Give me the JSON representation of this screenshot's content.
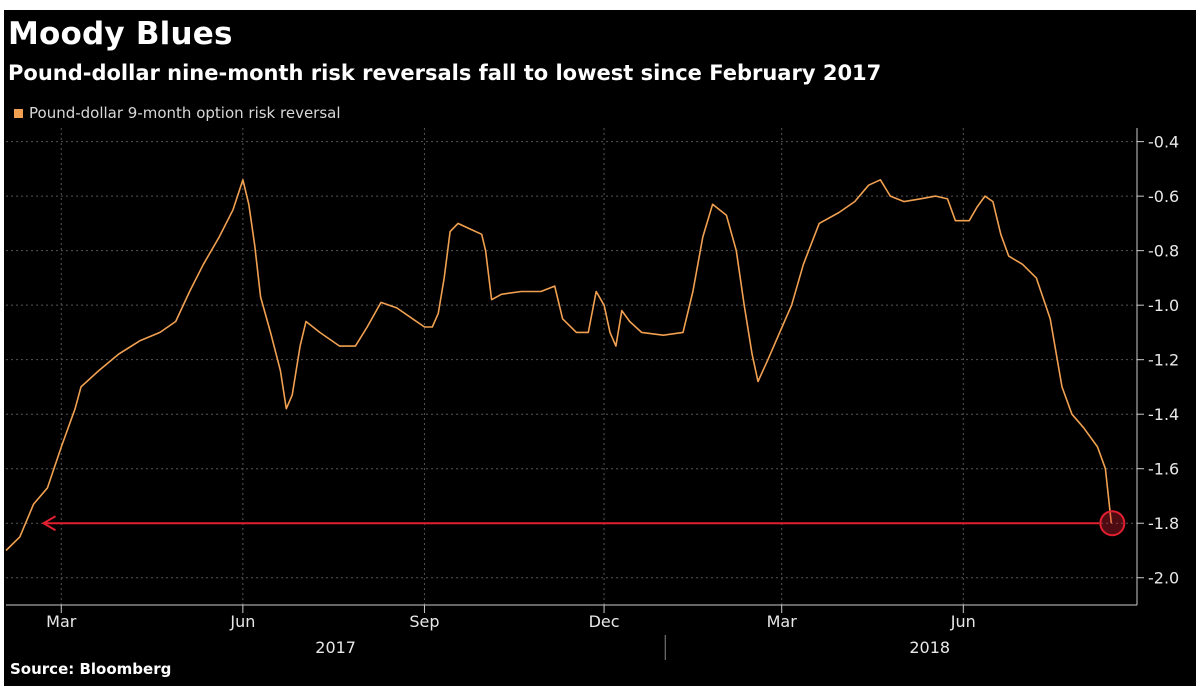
{
  "header": {
    "title": "Moody Blues",
    "subtitle": "Pound-dollar nine-month risk reversals fall to lowest since February 2017"
  },
  "footer": {
    "source": "Source: Bloomberg"
  },
  "colors": {
    "background": "#000000",
    "series": "#f0a050",
    "annotation": "#e02030",
    "grid": "#555555",
    "text": "#e8e8e8"
  },
  "chart_data": {
    "type": "line",
    "title": "Moody Blues",
    "subtitle": "Pound-dollar nine-month risk reversals fall to lowest since February 2017",
    "legend_position": "top-left",
    "grid": true,
    "y_axis_side": "right",
    "ylim": [
      -2.1,
      -0.35
    ],
    "y_ticks": [
      -0.4,
      -0.6,
      -0.8,
      -1.0,
      -1.2,
      -1.4,
      -1.6,
      -1.8,
      -2.0
    ],
    "y_tick_labels": [
      "-0.4",
      "-0.6",
      "-0.8",
      "-1.0",
      "-1.2",
      "-1.4",
      "-1.6",
      "-1.8",
      "-2.0"
    ],
    "x_range": [
      "2017-02-01",
      "2018-08-28"
    ],
    "x_ticks": [
      {
        "date": "2017-03-01",
        "label": "Mar"
      },
      {
        "date": "2017-06-01",
        "label": "Jun"
      },
      {
        "date": "2017-09-01",
        "label": "Sep"
      },
      {
        "date": "2017-12-01",
        "label": "Dec"
      },
      {
        "date": "2018-03-01",
        "label": "Mar"
      },
      {
        "date": "2018-06-01",
        "label": "Jun"
      }
    ],
    "year_labels": [
      {
        "label": "2017",
        "center": "2017-07-18"
      },
      {
        "label": "2018",
        "center": "2018-05-15"
      }
    ],
    "year_divider": "2018-01-01",
    "series": [
      {
        "name": "Pound-dollar 9-month option risk reversal",
        "color": "#f0a050",
        "points": [
          [
            "2017-02-01",
            -1.9
          ],
          [
            "2017-02-08",
            -1.85
          ],
          [
            "2017-02-15",
            -1.73
          ],
          [
            "2017-02-22",
            -1.67
          ],
          [
            "2017-03-01",
            -1.52
          ],
          [
            "2017-03-08",
            -1.38
          ],
          [
            "2017-03-11",
            -1.3
          ],
          [
            "2017-03-20",
            -1.24
          ],
          [
            "2017-03-30",
            -1.18
          ],
          [
            "2017-04-10",
            -1.13
          ],
          [
            "2017-04-20",
            -1.1
          ],
          [
            "2017-04-28",
            -1.06
          ],
          [
            "2017-05-05",
            -0.95
          ],
          [
            "2017-05-12",
            -0.85
          ],
          [
            "2017-05-20",
            -0.75
          ],
          [
            "2017-05-27",
            -0.65
          ],
          [
            "2017-06-01",
            -0.54
          ],
          [
            "2017-06-04",
            -0.63
          ],
          [
            "2017-06-07",
            -0.78
          ],
          [
            "2017-06-10",
            -0.97
          ],
          [
            "2017-06-15",
            -1.1
          ],
          [
            "2017-06-20",
            -1.24
          ],
          [
            "2017-06-23",
            -1.38
          ],
          [
            "2017-06-26",
            -1.33
          ],
          [
            "2017-06-30",
            -1.15
          ],
          [
            "2017-07-03",
            -1.06
          ],
          [
            "2017-07-10",
            -1.1
          ],
          [
            "2017-07-20",
            -1.15
          ],
          [
            "2017-07-28",
            -1.15
          ],
          [
            "2017-08-03",
            -1.08
          ],
          [
            "2017-08-10",
            -0.99
          ],
          [
            "2017-08-18",
            -1.01
          ],
          [
            "2017-08-26",
            -1.05
          ],
          [
            "2017-09-01",
            -1.08
          ],
          [
            "2017-09-05",
            -1.08
          ],
          [
            "2017-09-08",
            -1.03
          ],
          [
            "2017-09-11",
            -0.9
          ],
          [
            "2017-09-14",
            -0.73
          ],
          [
            "2017-09-18",
            -0.7
          ],
          [
            "2017-09-24",
            -0.72
          ],
          [
            "2017-09-30",
            -0.74
          ],
          [
            "2017-10-02",
            -0.8
          ],
          [
            "2017-10-05",
            -0.98
          ],
          [
            "2017-10-10",
            -0.96
          ],
          [
            "2017-10-20",
            -0.95
          ],
          [
            "2017-10-30",
            -0.95
          ],
          [
            "2017-11-06",
            -0.93
          ],
          [
            "2017-11-10",
            -1.05
          ],
          [
            "2017-11-17",
            -1.1
          ],
          [
            "2017-11-23",
            -1.1
          ],
          [
            "2017-11-27",
            -0.95
          ],
          [
            "2017-12-01",
            -1.0
          ],
          [
            "2017-12-04",
            -1.1
          ],
          [
            "2017-12-07",
            -1.15
          ],
          [
            "2017-12-10",
            -1.02
          ],
          [
            "2017-12-14",
            -1.06
          ],
          [
            "2017-12-20",
            -1.1
          ],
          [
            "2017-12-31",
            -1.11
          ],
          [
            "2018-01-10",
            -1.1
          ],
          [
            "2018-01-15",
            -0.95
          ],
          [
            "2018-01-20",
            -0.75
          ],
          [
            "2018-01-25",
            -0.63
          ],
          [
            "2018-02-01",
            -0.67
          ],
          [
            "2018-02-06",
            -0.8
          ],
          [
            "2018-02-10",
            -1.0
          ],
          [
            "2018-02-14",
            -1.18
          ],
          [
            "2018-02-17",
            -1.28
          ],
          [
            "2018-02-22",
            -1.2
          ],
          [
            "2018-02-28",
            -1.1
          ],
          [
            "2018-03-06",
            -1.0
          ],
          [
            "2018-03-12",
            -0.85
          ],
          [
            "2018-03-20",
            -0.7
          ],
          [
            "2018-03-30",
            -0.66
          ],
          [
            "2018-04-07",
            -0.62
          ],
          [
            "2018-04-14",
            -0.56
          ],
          [
            "2018-04-20",
            -0.54
          ],
          [
            "2018-04-25",
            -0.6
          ],
          [
            "2018-05-02",
            -0.62
          ],
          [
            "2018-05-10",
            -0.61
          ],
          [
            "2018-05-18",
            -0.6
          ],
          [
            "2018-05-24",
            -0.61
          ],
          [
            "2018-05-28",
            -0.69
          ],
          [
            "2018-06-04",
            -0.69
          ],
          [
            "2018-06-08",
            -0.64
          ],
          [
            "2018-06-12",
            -0.6
          ],
          [
            "2018-06-16",
            -0.62
          ],
          [
            "2018-06-20",
            -0.74
          ],
          [
            "2018-06-24",
            -0.82
          ],
          [
            "2018-07-01",
            -0.85
          ],
          [
            "2018-07-08",
            -0.9
          ],
          [
            "2018-07-15",
            -1.05
          ],
          [
            "2018-07-21",
            -1.3
          ],
          [
            "2018-07-26",
            -1.4
          ],
          [
            "2018-08-01",
            -1.45
          ],
          [
            "2018-08-08",
            -1.52
          ],
          [
            "2018-08-12",
            -1.6
          ],
          [
            "2018-08-15",
            -1.8
          ]
        ]
      }
    ],
    "annotations": [
      {
        "type": "arrow",
        "from": "2018-08-15",
        "to": "2017-02-20",
        "y": -1.8,
        "color": "#e02030"
      },
      {
        "type": "circle",
        "at": "2018-08-15",
        "y": -1.8,
        "color": "#e02030"
      }
    ]
  }
}
